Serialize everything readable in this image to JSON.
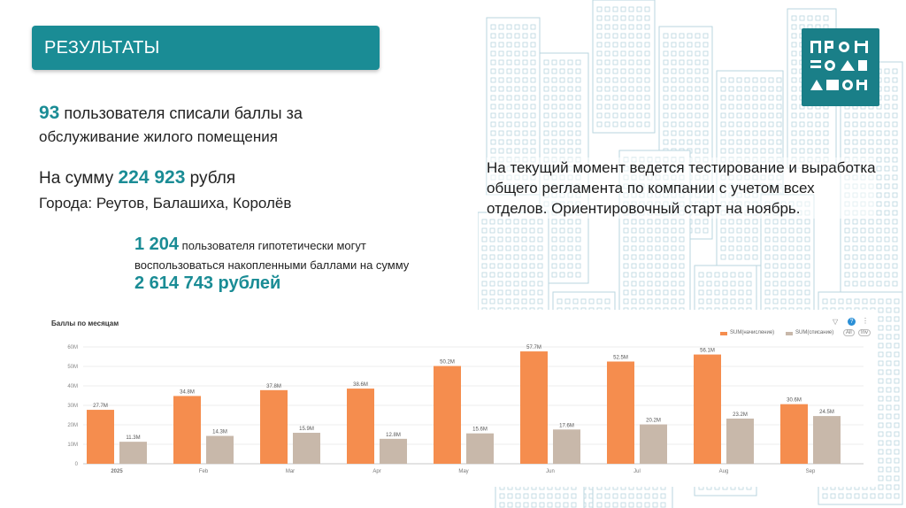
{
  "header": {
    "title": "РЕЗУЛЬТАТЫ"
  },
  "logo": {
    "text": "ПРОМОДОМ"
  },
  "stats": {
    "users_count": "93",
    "users_text_1": " пользователя списали баллы за",
    "users_text_2": "обслуживание жилого помещения",
    "sum_prefix": "На сумму ",
    "sum_value": "224 923",
    "sum_suffix": " рубля",
    "cities": "Города: Реутов, Балашиха, Королёв",
    "hypo_count": "1 204",
    "hypo_text_1": " пользователя гипотетически могут",
    "hypo_text_2": "воспользоваться накопленными баллами на сумму",
    "hypo_sum": "2 614 743 рублей"
  },
  "note": "На текущий момент ведется тестирование и выработка общего регламента по компании с учетом всех отделов. Ориентировочный старт на ноябрь.",
  "colors": {
    "accent": "#1a8c95",
    "series1": "#f58d4e",
    "series2": "#c8b8aa"
  },
  "chart_data": {
    "type": "bar",
    "title": "Баллы по месяцам",
    "categories": [
      "2025",
      "Feb",
      "Mar",
      "Apr",
      "May",
      "Jun",
      "Jul",
      "Aug",
      "Sep"
    ],
    "series": [
      {
        "name": "SUM(начисление)",
        "values": [
          27.7,
          34.8,
          37.8,
          38.6,
          50.2,
          57.7,
          52.5,
          56.1,
          30.6
        ],
        "labels": [
          "27.7M",
          "34.8M",
          "37.8M",
          "38.6M",
          "50.2M",
          "57.7M",
          "52.5M",
          "56.1M",
          "30.6M"
        ]
      },
      {
        "name": "SUM(списание)",
        "values": [
          11.3,
          14.3,
          15.9,
          12.8,
          15.6,
          17.6,
          20.2,
          23.2,
          24.5
        ],
        "labels": [
          "11.3M",
          "14.3M",
          "15.9M",
          "12.8M",
          "15.6M",
          "17.6M",
          "20.2M",
          "23.2M",
          "24.5M"
        ]
      }
    ],
    "yticks": [
      "0",
      "10M",
      "20M",
      "30M",
      "40M",
      "50M",
      "60M"
    ],
    "ylim": [
      0,
      60
    ],
    "grid": true,
    "legend": "top-right",
    "legend_chips": [
      "All",
      "Inv"
    ]
  }
}
